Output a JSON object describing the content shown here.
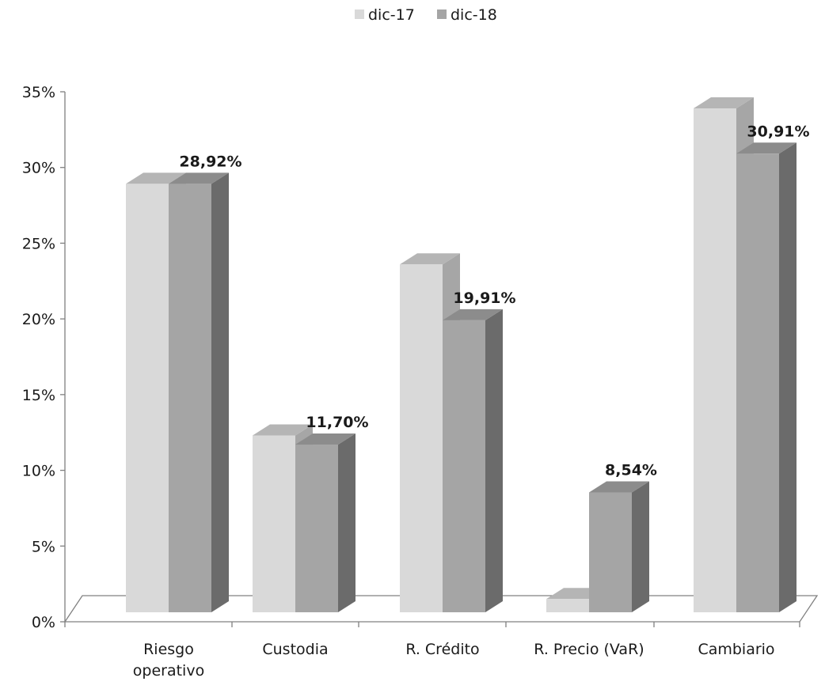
{
  "chart_data": {
    "type": "bar",
    "subtype": "3d-clustered",
    "categories": [
      "Riesgo operativo",
      "Custodia",
      "R. Crédito",
      "R. Precio (VaR)",
      "Cambiario"
    ],
    "category_lines": [
      [
        "Riesgo",
        "operativo"
      ],
      [
        "Custodia"
      ],
      [
        "R. Crédito"
      ],
      [
        "R. Precio (VaR)"
      ],
      [
        "Cambiario"
      ]
    ],
    "series": [
      {
        "name": "dic-17",
        "values": [
          28.92,
          12.3,
          23.6,
          1.5,
          33.9
        ],
        "data_labels": [
          null,
          null,
          null,
          null,
          null
        ]
      },
      {
        "name": "dic-18",
        "values": [
          28.92,
          11.7,
          19.91,
          8.54,
          30.91
        ],
        "data_labels": [
          "28,92%",
          "11,70%",
          "19,91%",
          "8,54%",
          "30,91%"
        ]
      }
    ],
    "yticks": [
      "0%",
      "5%",
      "10%",
      "15%",
      "20%",
      "25%",
      "30%",
      "35%"
    ],
    "ylim": [
      0,
      35
    ],
    "legend_position": "top",
    "grid": false,
    "colors": {
      "dic-17": {
        "front": "#d9d9d9",
        "top": "#b5b5b5",
        "side": "#a6a6a6"
      },
      "dic-18": {
        "front": "#a5a5a5",
        "top": "#8c8c8c",
        "side": "#6b6b6b"
      },
      "axis": "#808080"
    }
  }
}
